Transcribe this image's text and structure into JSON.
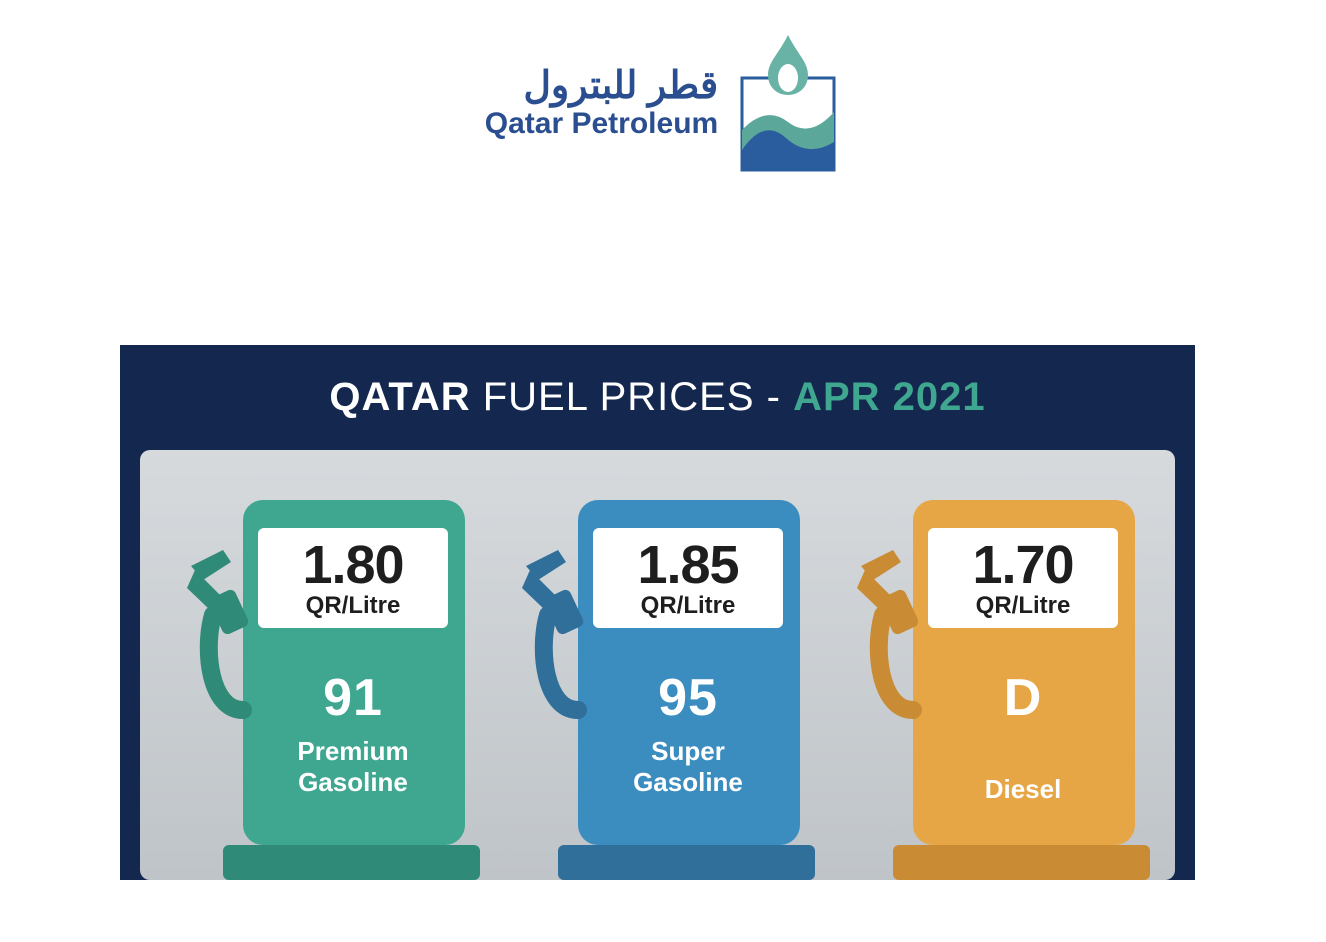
{
  "logo": {
    "arabic": "قطر للبترول",
    "english": "Qatar Petroleum",
    "text_color": "#2a4e8f",
    "flame_color": "#69b3a6",
    "wave_color_top": "#5ba89a",
    "wave_color_bottom": "#2a5d9e"
  },
  "panel": {
    "background_color": "#14274f",
    "body_gradient_top": "#d6dadd",
    "body_gradient_bottom": "#bfc4c8",
    "header": {
      "strong": "QATAR",
      "rest": " FUEL PRICES - ",
      "date": "APR 2021",
      "date_color": "#3fa690",
      "text_color": "#ffffff",
      "fontsize": 40
    }
  },
  "pumps": [
    {
      "price": "1.80",
      "unit": "QR/Litre",
      "grade": "91",
      "name_line1": "Premium",
      "name_line2": "Gasoline",
      "color_main": "#3fa690",
      "color_dark": "#2f8a78"
    },
    {
      "price": "1.85",
      "unit": "QR/Litre",
      "grade": "95",
      "name_line1": "Super",
      "name_line2": "Gasoline",
      "color_main": "#3b8cbf",
      "color_dark": "#2f6f9a"
    },
    {
      "price": "1.70",
      "unit": "QR/Litre",
      "grade": "D",
      "name_line1": "Diesel",
      "name_line2": "",
      "color_main": "#e6a646",
      "color_dark": "#c98b33"
    }
  ],
  "pricebox": {
    "bg": "#ffffff",
    "text": "#1e1e1e",
    "value_fontsize": 54,
    "unit_fontsize": 24
  }
}
